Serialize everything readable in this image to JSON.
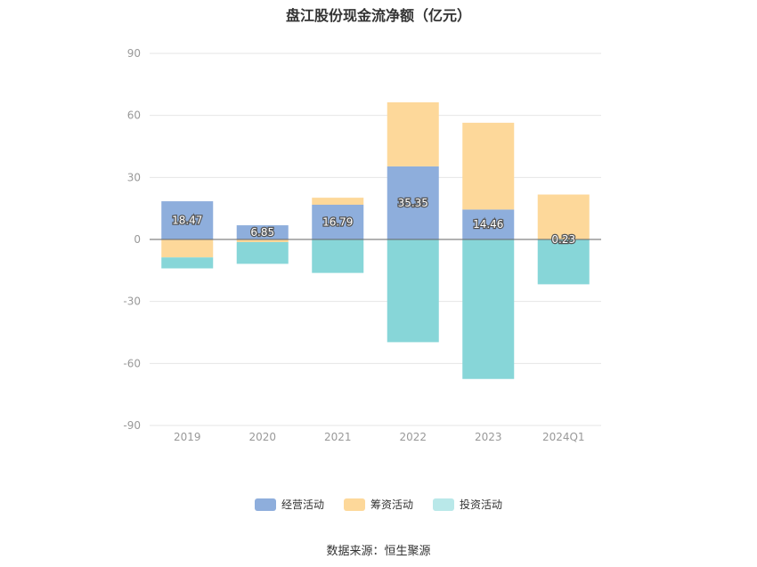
{
  "chart_data": {
    "type": "bar",
    "stacked": true,
    "title": "盘江股份现金流净额（亿元）",
    "xlabel": "",
    "ylabel": "",
    "categories": [
      "2019",
      "2020",
      "2021",
      "2022",
      "2023",
      "2024Q1"
    ],
    "ylim": [
      -90,
      90
    ],
    "yticks": [
      90,
      60,
      30,
      0,
      -30,
      -60,
      -90
    ],
    "grid": true,
    "legend_position": "bottom",
    "series": [
      {
        "name": "经营活动",
        "color": "#8eaedc",
        "values": [
          18.47,
          6.85,
          16.79,
          35.35,
          14.46,
          0.23
        ],
        "labels": [
          "18.47",
          "6.85",
          "16.79",
          "35.35",
          "14.46",
          "0.23"
        ]
      },
      {
        "name": "筹资活动",
        "color": "#fdd89a",
        "values": [
          -8.7,
          -1.3,
          3.4,
          31,
          42,
          21.5
        ]
      },
      {
        "name": "投资活动",
        "color": "#87d6d8",
        "values": [
          -5.3,
          -10.5,
          -16.2,
          -49.7,
          -67.5,
          -21.7
        ]
      }
    ]
  },
  "title": "盘江股份现金流净额（亿元）",
  "source": "数据来源：恒生聚源",
  "legend": [
    {
      "name": "经营活动",
      "color": "#8eaedc"
    },
    {
      "name": "筹资活动",
      "color": "#fdd89a"
    },
    {
      "name": "投资活动",
      "color": "#b9e8e9"
    }
  ]
}
